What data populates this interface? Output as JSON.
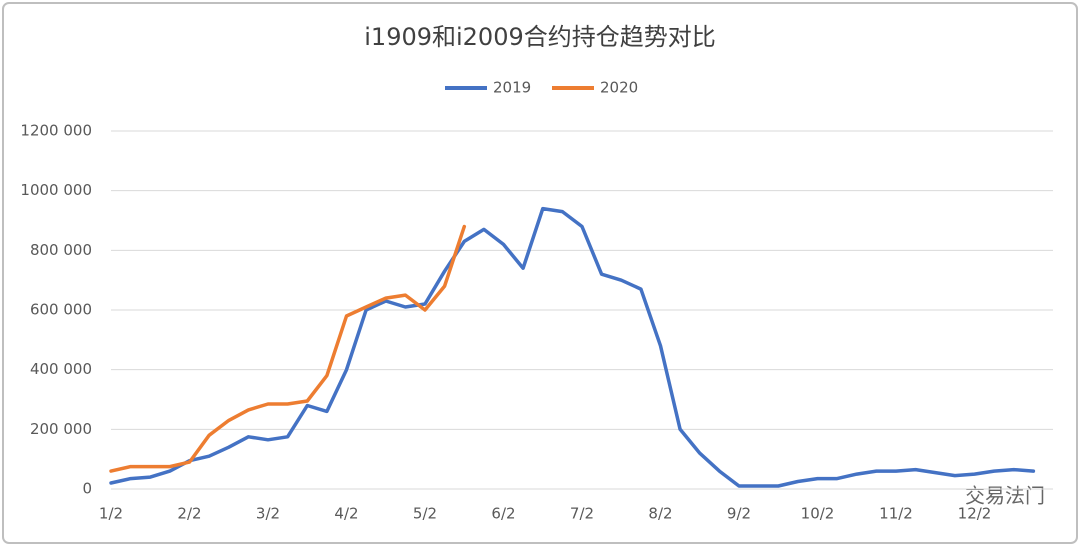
{
  "chart_data": {
    "type": "line",
    "title": "i1909和i2009合约持仓趋势对比",
    "categories": [
      "1/2",
      null,
      null,
      null,
      "2/2",
      null,
      null,
      null,
      "3/2",
      null,
      null,
      null,
      "4/2",
      null,
      null,
      null,
      "5/2",
      null,
      null,
      null,
      "6/2",
      null,
      null,
      null,
      "7/2",
      null,
      null,
      null,
      "8/2",
      null,
      null,
      null,
      "9/2",
      null,
      null,
      null,
      "10/2",
      null,
      null,
      null,
      "11/2",
      null,
      null,
      null,
      "12/2",
      null,
      null,
      null
    ],
    "series": [
      {
        "name": "2019",
        "color": "#4472c4",
        "values": [
          20000,
          35000,
          40000,
          60000,
          95000,
          110000,
          140000,
          175000,
          165000,
          175000,
          280000,
          260000,
          400000,
          600000,
          630000,
          610000,
          620000,
          730000,
          830000,
          870000,
          820000,
          740000,
          940000,
          930000,
          880000,
          720000,
          700000,
          670000,
          480000,
          200000,
          120000,
          60000,
          10000,
          10000,
          10000,
          25000,
          35000,
          35000,
          50000,
          60000,
          60000,
          65000,
          55000,
          45000,
          50000,
          60000,
          65000,
          60000
        ]
      },
      {
        "name": "2020",
        "color": "#ed7d31",
        "values": [
          60000,
          75000,
          75000,
          75000,
          90000,
          180000,
          230000,
          265000,
          285000,
          285000,
          295000,
          380000,
          580000,
          610000,
          640000,
          650000,
          600000,
          680000,
          880000,
          null,
          null,
          null,
          null,
          null,
          null,
          null,
          null,
          null,
          null,
          null,
          null,
          null,
          null,
          null,
          null,
          null,
          null,
          null,
          null,
          null,
          null,
          null,
          null,
          null,
          null,
          null,
          null,
          null
        ]
      }
    ],
    "ylim": [
      0,
      1200000
    ],
    "yticks": [
      0,
      {
        "value": 200000,
        "label": "200 000"
      },
      {
        "value": 400000,
        "label": "400 000"
      },
      {
        "value": 600000,
        "label": "600 000"
      },
      {
        "value": 800000,
        "label": "800 000"
      },
      {
        "value": 1000000,
        "label": "1000 000"
      },
      {
        "value": 1200000,
        "label": "1200 000"
      }
    ],
    "grid": true,
    "legend": "top",
    "annotation": "交易法门"
  }
}
